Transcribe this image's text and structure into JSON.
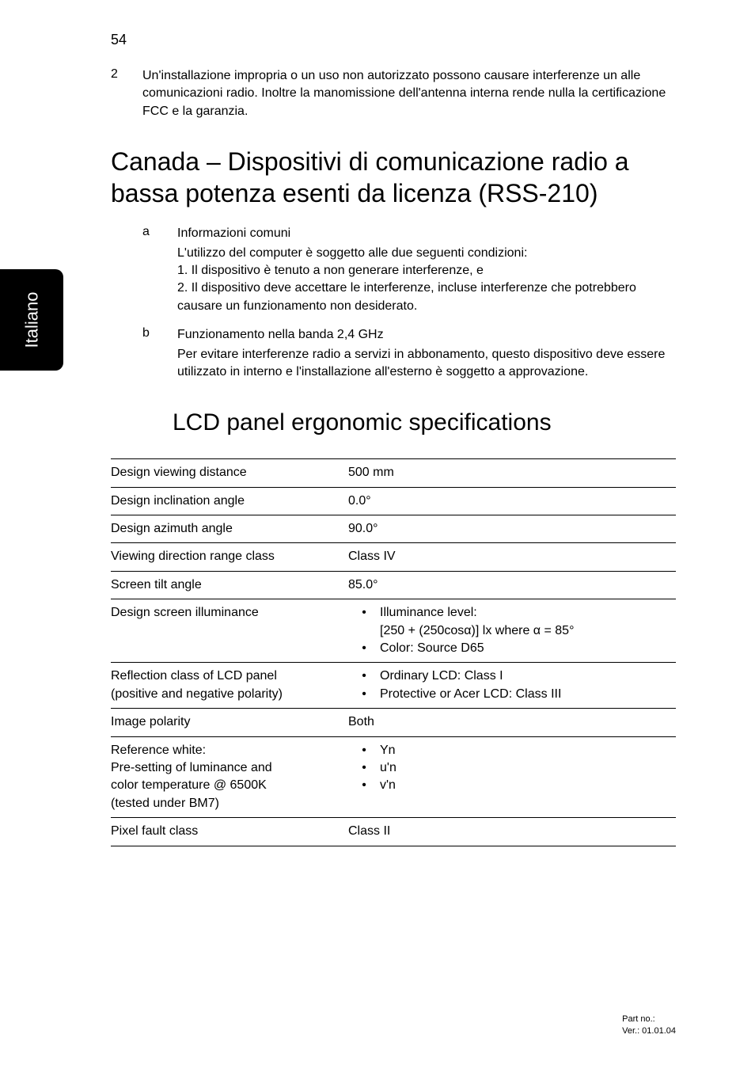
{
  "page_number": "54",
  "intro_item": {
    "number": "2",
    "text": "Un'installazione impropria o un uso non autorizzato possono causare interferenze un alle comunicazioni radio. Inoltre la manomissione dell'antenna interna rende nulla la certificazione FCC e la garanzia."
  },
  "side_tab": "Italiano",
  "section_title": "Canada – Dispositivi di comunicazione radio a bassa potenza esenti da licenza (RSS-210)",
  "lettered": [
    {
      "letter": "a",
      "head": "Informazioni comuni",
      "lines": [
        "L'utilizzo del computer è soggetto alle due seguenti condizioni:",
        "1. Il dispositivo è tenuto a non generare interferenze, e",
        "2. Il dispositivo deve accettare le interferenze, incluse interferenze che potrebbero causare un funzionamento non desiderato."
      ]
    },
    {
      "letter": "b",
      "head": "Funzionamento nella banda 2,4 GHz",
      "lines": [
        "Per evitare interferenze radio a servizi in abbonamento, questo dispositivo deve essere utilizzato in interno e l'installazione all'esterno è soggetto a approvazione."
      ]
    }
  ],
  "subsection_title": "LCD panel ergonomic specifications",
  "table": [
    {
      "label": "Design viewing distance",
      "value_plain": "500 mm"
    },
    {
      "label": "Design inclination angle",
      "value_plain": "0.0°"
    },
    {
      "label": "Design azimuth angle",
      "value_plain": "90.0°"
    },
    {
      "label": "Viewing direction range class",
      "value_plain": "Class IV"
    },
    {
      "label": "Screen tilt angle",
      "value_plain": "85.0°"
    },
    {
      "label": "Design screen illuminance",
      "bullets": [
        {
          "text": "Illuminance level:",
          "sub": "[250 + (250cosα)] lx where α = 85°"
        },
        {
          "text": "Color: Source D65"
        }
      ]
    },
    {
      "label_lines": [
        "Reflection class of LCD panel",
        "(positive and negative polarity)"
      ],
      "bullets": [
        {
          "text": "Ordinary LCD: Class I"
        },
        {
          "text": "Protective or Acer LCD: Class III"
        }
      ]
    },
    {
      "label": "Image polarity",
      "value_plain": "Both"
    },
    {
      "label_lines": [
        "Reference white:",
        "Pre-setting of luminance and",
        "color temperature @ 6500K",
        "(tested under BM7)"
      ],
      "bullets": [
        {
          "text": "Yn"
        },
        {
          "text": "u'n"
        },
        {
          "text": "v'n"
        }
      ]
    },
    {
      "label": "Pixel fault class",
      "value_plain": "Class II"
    }
  ],
  "footer": {
    "line1": "Part no.:",
    "line2": "Ver.: 01.01.04"
  },
  "colors": {
    "text": "#000000",
    "background": "#ffffff",
    "tab_bg": "#000000",
    "tab_fg": "#ffffff",
    "rule": "#000000"
  }
}
